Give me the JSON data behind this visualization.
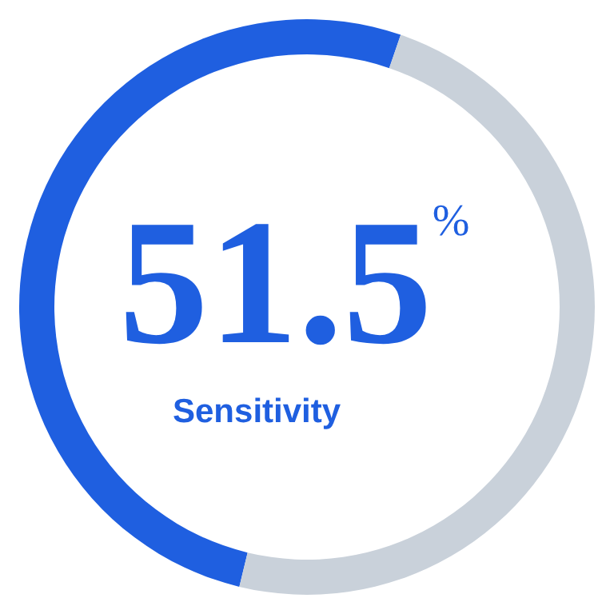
{
  "chart_data": {
    "type": "donut",
    "categories": [
      "Sensitivity",
      null
    ],
    "values": [
      51.5,
      48.5
    ],
    "colors": [
      "#1f5fe0",
      "#c9d1da"
    ],
    "value_labels": [
      "51.5$^{%}$",
      null
    ]
  }
}
